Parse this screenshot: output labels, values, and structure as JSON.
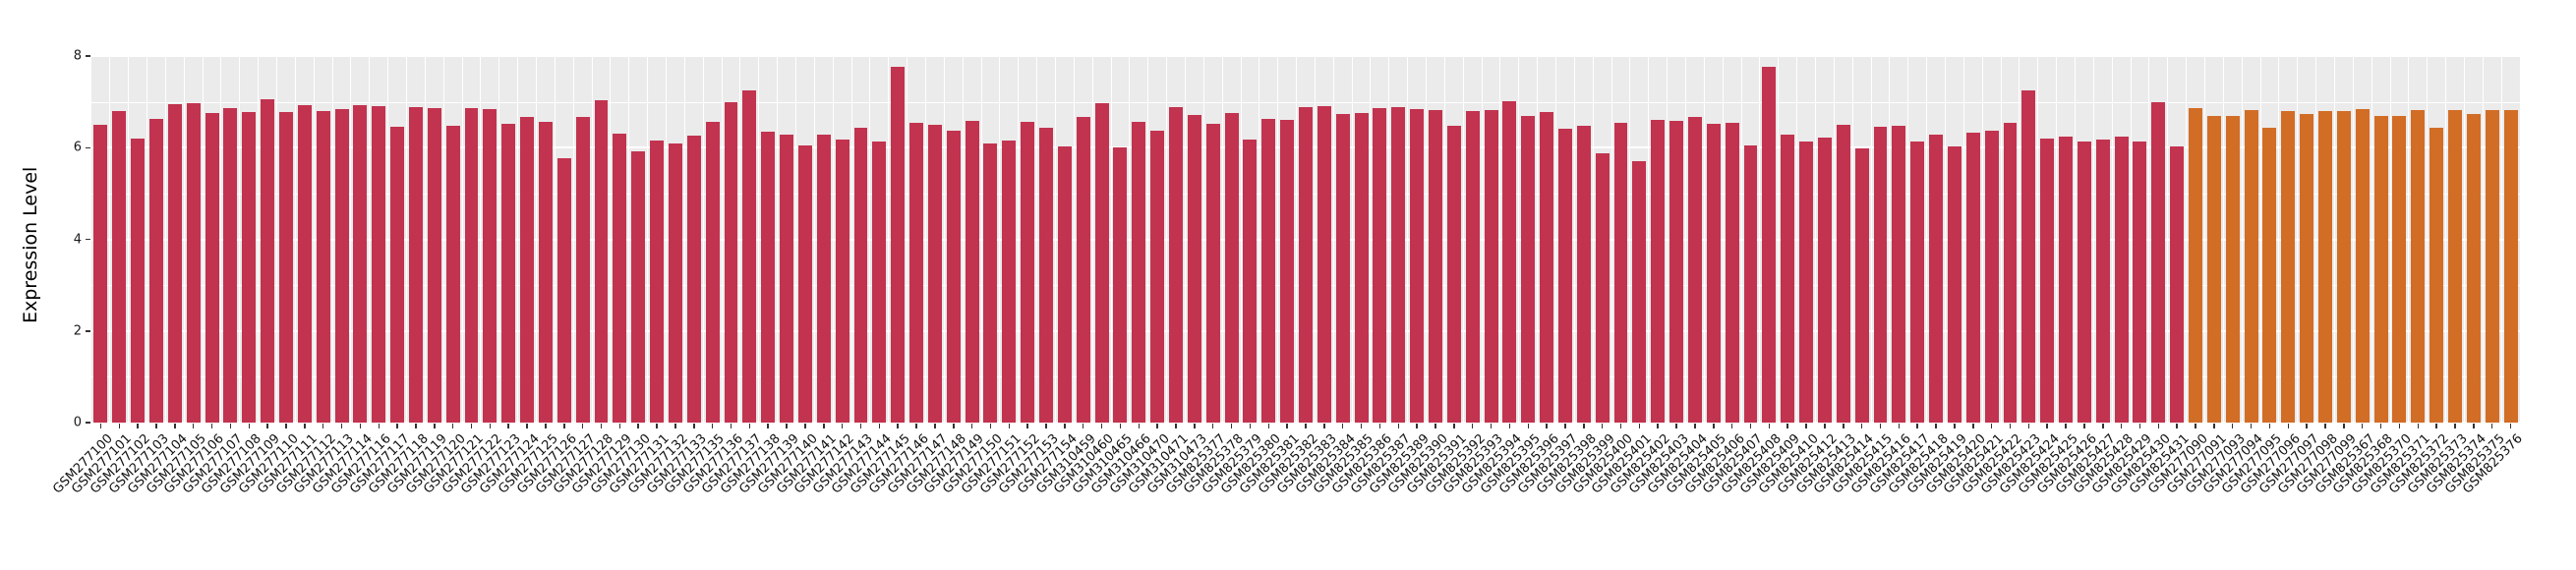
{
  "chart_data": {
    "type": "bar",
    "title": "",
    "xlabel": "",
    "ylabel": "Expression Level",
    "ylim": [
      0,
      8
    ],
    "yticks": [
      0,
      2,
      4,
      6,
      8
    ],
    "yticks_minor": [
      1,
      3,
      5,
      7
    ],
    "grid": true,
    "legend_position": "none",
    "panel_background": "#ebebeb",
    "gridline_color": "#ffffff",
    "bar_color_red": "#C2334F",
    "bar_color_orange": "#D26D26",
    "color_spans": [
      {
        "from": 0,
        "to": 112,
        "color": "#C2334F",
        "group": "crimson"
      },
      {
        "from": 113,
        "to": 130,
        "color": "#D26D26",
        "group": "orange"
      }
    ],
    "categories": [
      "GSM277100",
      "GSM277101",
      "GSM277102",
      "GSM277103",
      "GSM277104",
      "GSM277105",
      "GSM277106",
      "GSM277107",
      "GSM277108",
      "GSM277109",
      "GSM277110",
      "GSM277111",
      "GSM277112",
      "GSM277113",
      "GSM277114",
      "GSM277116",
      "GSM277117",
      "GSM277118",
      "GSM277119",
      "GSM277120",
      "GSM277121",
      "GSM277122",
      "GSM277123",
      "GSM277124",
      "GSM277125",
      "GSM277126",
      "GSM277127",
      "GSM277128",
      "GSM277129",
      "GSM277130",
      "GSM277131",
      "GSM277132",
      "GSM277133",
      "GSM277135",
      "GSM277136",
      "GSM277137",
      "GSM277138",
      "GSM277139",
      "GSM277140",
      "GSM277141",
      "GSM277142",
      "GSM277143",
      "GSM277144",
      "GSM277145",
      "GSM277146",
      "GSM277147",
      "GSM277148",
      "GSM277149",
      "GSM277150",
      "GSM277151",
      "GSM277152",
      "GSM277153",
      "GSM277154",
      "GSM310459",
      "GSM310460",
      "GSM310465",
      "GSM310466",
      "GSM310470",
      "GSM310471",
      "GSM310473",
      "GSM825377",
      "GSM825378",
      "GSM825379",
      "GSM825380",
      "GSM825381",
      "GSM825382",
      "GSM825383",
      "GSM825384",
      "GSM825385",
      "GSM825386",
      "GSM825387",
      "GSM825389",
      "GSM825390",
      "GSM825391",
      "GSM825392",
      "GSM825393",
      "GSM825394",
      "GSM825395",
      "GSM825396",
      "GSM825397",
      "GSM825398",
      "GSM825399",
      "GSM825400",
      "GSM825401",
      "GSM825402",
      "GSM825403",
      "GSM825404",
      "GSM825405",
      "GSM825406",
      "GSM825407",
      "GSM825408",
      "GSM825409",
      "GSM825410",
      "GSM825412",
      "GSM825413",
      "GSM825414",
      "GSM825415",
      "GSM825416",
      "GSM825417",
      "GSM825418",
      "GSM825419",
      "GSM825420",
      "GSM825421",
      "GSM825422",
      "GSM825423",
      "GSM825424",
      "GSM825425",
      "GSM825426",
      "GSM825427",
      "GSM825428",
      "GSM825429",
      "GSM825430",
      "GSM825431",
      "GSM277090",
      "GSM277091",
      "GSM277093",
      "GSM277094",
      "GSM277095",
      "GSM277096",
      "GSM277097",
      "GSM277098",
      "GSM277099",
      "GSM825367",
      "GSM825368",
      "GSM825370",
      "GSM825371",
      "GSM825372",
      "GSM825373",
      "GSM825374",
      "GSM825375",
      "GSM825376"
    ],
    "values": [
      6.5,
      6.8,
      6.2,
      6.62,
      6.95,
      6.97,
      6.76,
      6.87,
      6.78,
      7.05,
      6.77,
      6.92,
      6.8,
      6.85,
      6.93,
      6.9,
      6.45,
      6.88,
      6.86,
      6.47,
      6.86,
      6.85,
      6.53,
      6.66,
      6.56,
      5.78,
      6.66,
      7.04,
      6.31,
      5.93,
      6.16,
      6.09,
      6.26,
      6.56,
      7.0,
      7.24,
      6.35,
      6.29,
      6.04,
      6.29,
      6.17,
      6.43,
      6.13,
      7.76,
      6.54,
      6.49,
      6.37,
      6.59,
      6.09,
      6.16,
      6.56,
      6.44,
      6.03,
      6.67,
      6.96,
      6.0,
      6.57,
      6.38,
      6.89,
      6.71,
      6.53,
      6.75,
      6.17,
      6.62,
      6.6,
      6.89,
      6.91,
      6.73,
      6.75,
      6.87,
      6.88,
      6.85,
      6.81,
      6.47,
      6.8,
      6.83,
      7.02,
      6.7,
      6.77,
      6.41,
      6.48,
      5.88,
      6.54,
      5.7,
      6.6,
      6.59,
      6.67,
      6.53,
      6.54,
      6.04,
      7.76,
      6.28,
      6.14,
      6.22,
      6.49,
      5.98,
      6.46,
      6.47,
      6.14,
      6.28,
      6.02,
      6.33,
      6.38,
      6.54,
      7.24,
      6.19,
      6.24,
      6.14,
      6.17,
      6.24,
      6.13,
      7.0,
      6.03,
      6.87,
      6.69,
      6.7,
      6.81,
      6.43,
      6.8,
      6.74,
      6.79,
      6.79,
      6.85,
      6.69,
      6.7,
      6.82,
      6.43,
      6.82,
      6.74,
      6.81,
      6.83
    ]
  },
  "layout_labels": {
    "y_axis_title": "Expression Level"
  }
}
